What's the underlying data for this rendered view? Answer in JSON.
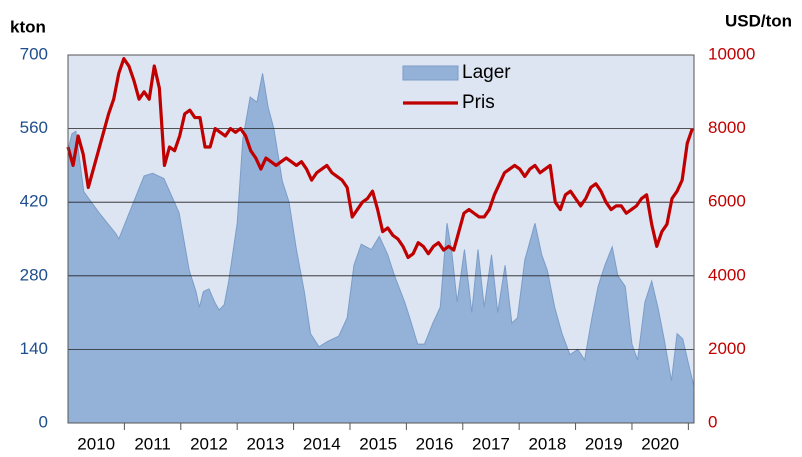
{
  "chart_data": {
    "type": "area-line",
    "y_label": "kton",
    "y2_label": "USD/ton",
    "xlim": [
      2010,
      2021.1
    ],
    "xticks": [
      {
        "value": 2010.5,
        "label": "2010"
      },
      {
        "value": 2011.5,
        "label": "2011"
      },
      {
        "value": 2012.5,
        "label": "2012"
      },
      {
        "value": 2013.5,
        "label": "2013"
      },
      {
        "value": 2014.5,
        "label": "2014"
      },
      {
        "value": 2015.5,
        "label": "2015"
      },
      {
        "value": 2016.5,
        "label": "2016"
      },
      {
        "value": 2017.5,
        "label": "2017"
      },
      {
        "value": 2018.5,
        "label": "2018"
      },
      {
        "value": 2019.5,
        "label": "2019"
      },
      {
        "value": 2020.5,
        "label": "2020"
      }
    ],
    "ylim": [
      0,
      700
    ],
    "yticks": [
      0,
      140,
      280,
      420,
      560,
      700
    ],
    "y2lim": [
      0,
      10000
    ],
    "y2ticks": [
      0,
      2000,
      4000,
      6000,
      8000,
      10000
    ],
    "grid": true,
    "legend": "top",
    "series": [
      {
        "name": "Lager",
        "type": "area",
        "color": "#94b2d8",
        "axis": "y",
        "x": [
          2010,
          2010.07,
          2010.14,
          2010.28,
          2010.55,
          2010.85,
          2010.9,
          2011.35,
          2011.5,
          2011.7,
          2011.97,
          2012.15,
          2012.27,
          2012.33,
          2012.4,
          2012.5,
          2012.6,
          2012.68,
          2012.77,
          2012.85,
          2013,
          2013.1,
          2013.23,
          2013.35,
          2013.45,
          2013.55,
          2013.65,
          2013.8,
          2013.92,
          2014.05,
          2014.19,
          2014.3,
          2014.45,
          2014.6,
          2014.8,
          2014.95,
          2015.07,
          2015.2,
          2015.38,
          2015.52,
          2015.67,
          2015.79,
          2015.97,
          2016.06,
          2016.2,
          2016.32,
          2016.47,
          2016.6,
          2016.72,
          2016.8,
          2016.9,
          2017.03,
          2017.16,
          2017.27,
          2017.38,
          2017.51,
          2017.62,
          2017.75,
          2017.87,
          2017.97,
          2018.1,
          2018.28,
          2018.4,
          2018.5,
          2018.63,
          2018.76,
          2018.9,
          2019.04,
          2019.16,
          2019.29,
          2019.4,
          2019.52,
          2019.65,
          2019.75,
          2019.88,
          2020,
          2020.1,
          2020.23,
          2020.35,
          2020.46,
          2020.57,
          2020.7,
          2020.8,
          2020.9,
          2021.03,
          2021.1
        ],
        "values": [
          520,
          550,
          555,
          440,
          400,
          360,
          350,
          470,
          475,
          465,
          400,
          290,
          250,
          220,
          250,
          255,
          230,
          215,
          225,
          270,
          380,
          540,
          620,
          610,
          665,
          600,
          560,
          460,
          420,
          330,
          250,
          170,
          145,
          155,
          165,
          200,
          300,
          340,
          330,
          355,
          320,
          280,
          230,
          200,
          150,
          150,
          190,
          220,
          380,
          330,
          230,
          330,
          210,
          330,
          220,
          320,
          210,
          300,
          190,
          200,
          310,
          380,
          320,
          290,
          220,
          170,
          130,
          140,
          120,
          200,
          260,
          300,
          335,
          280,
          260,
          150,
          120,
          230,
          270,
          220,
          160,
          80,
          170,
          160,
          100,
          70
        ]
      },
      {
        "name": "Pris",
        "type": "line",
        "color": "#c00000",
        "axis": "y2",
        "x": [
          2010,
          2010.09,
          2010.18,
          2010.27,
          2010.36,
          2010.45,
          2010.54,
          2010.63,
          2010.72,
          2010.81,
          2010.9,
          2010.99,
          2011.08,
          2011.17,
          2011.26,
          2011.35,
          2011.44,
          2011.53,
          2011.62,
          2011.71,
          2011.8,
          2011.89,
          2011.98,
          2012.07,
          2012.16,
          2012.25,
          2012.34,
          2012.43,
          2012.52,
          2012.61,
          2012.7,
          2012.79,
          2012.88,
          2012.97,
          2013.06,
          2013.15,
          2013.24,
          2013.33,
          2013.42,
          2013.51,
          2013.6,
          2013.69,
          2013.78,
          2013.87,
          2013.96,
          2014.05,
          2014.14,
          2014.23,
          2014.32,
          2014.41,
          2014.5,
          2014.59,
          2014.68,
          2014.77,
          2014.86,
          2014.95,
          2015.04,
          2015.13,
          2015.22,
          2015.31,
          2015.4,
          2015.49,
          2015.58,
          2015.67,
          2015.76,
          2015.85,
          2015.94,
          2016.03,
          2016.12,
          2016.21,
          2016.3,
          2016.39,
          2016.48,
          2016.57,
          2016.66,
          2016.75,
          2016.84,
          2016.93,
          2017.02,
          2017.11,
          2017.2,
          2017.29,
          2017.38,
          2017.47,
          2017.56,
          2017.65,
          2017.74,
          2017.83,
          2017.92,
          2018.01,
          2018.1,
          2018.19,
          2018.28,
          2018.37,
          2018.46,
          2018.55,
          2018.64,
          2018.73,
          2018.82,
          2018.91,
          2019,
          2019.09,
          2019.18,
          2019.27,
          2019.36,
          2019.45,
          2019.54,
          2019.63,
          2019.72,
          2019.81,
          2019.9,
          2019.99,
          2020.08,
          2020.17,
          2020.26,
          2020.35,
          2020.44,
          2020.53,
          2020.62,
          2020.71,
          2020.8,
          2020.89,
          2020.98,
          2021.07
        ],
        "values": [
          7500,
          7000,
          7800,
          7300,
          6400,
          6900,
          7400,
          7900,
          8400,
          8800,
          9500,
          9900,
          9700,
          9300,
          8800,
          9000,
          8800,
          9700,
          9100,
          7000,
          7500,
          7400,
          7800,
          8400,
          8500,
          8300,
          8300,
          7500,
          7500,
          8000,
          7900,
          7800,
          8000,
          7900,
          8000,
          7800,
          7400,
          7200,
          6900,
          7200,
          7100,
          7000,
          7100,
          7200,
          7100,
          7000,
          7100,
          6900,
          6600,
          6800,
          6900,
          7000,
          6800,
          6700,
          6600,
          6400,
          5600,
          5800,
          6000,
          6100,
          6300,
          5800,
          5200,
          5300,
          5100,
          5000,
          4800,
          4500,
          4600,
          4900,
          4800,
          4600,
          4800,
          4900,
          4700,
          4800,
          4700,
          5200,
          5700,
          5800,
          5700,
          5600,
          5600,
          5800,
          6200,
          6500,
          6800,
          6900,
          7000,
          6900,
          6700,
          6900,
          7000,
          6800,
          6900,
          7000,
          6000,
          5800,
          6200,
          6300,
          6100,
          5900,
          6100,
          6400,
          6500,
          6300,
          6000,
          5800,
          5900,
          5900,
          5700,
          5800,
          5900,
          6100,
          6200,
          5400,
          4800,
          5200,
          5400,
          6100,
          6300,
          6600,
          7600,
          8000
        ]
      }
    ]
  }
}
